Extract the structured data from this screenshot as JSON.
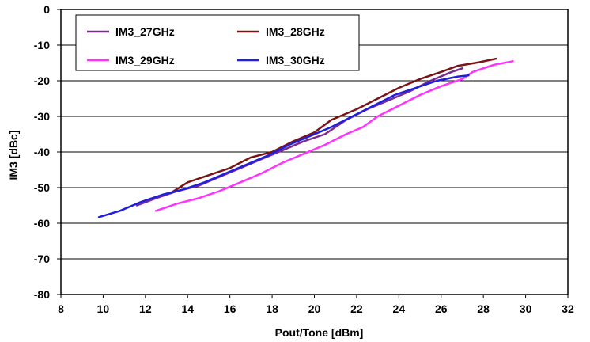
{
  "chart_data": {
    "type": "line",
    "title": "",
    "xlabel": "Pout/Tone [dBm]",
    "ylabel": "IM3 [dBc]",
    "xlim": [
      8,
      32
    ],
    "ylim": [
      -80,
      0
    ],
    "xticks": [
      8,
      10,
      12,
      14,
      16,
      18,
      20,
      22,
      24,
      26,
      28,
      30,
      32
    ],
    "yticks": [
      0,
      -10,
      -20,
      -30,
      -40,
      -50,
      -60,
      -70,
      -80
    ],
    "grid": "horizontal",
    "legend": "top-left",
    "series": [
      {
        "name": "IM3_27GHz",
        "color": "#7B2A8E",
        "points": [
          [
            11.6,
            -55.0
          ],
          [
            12.5,
            -53.0
          ],
          [
            13.5,
            -51.0
          ],
          [
            14.5,
            -49.5
          ],
          [
            15.5,
            -47.0
          ],
          [
            16.5,
            -44.5
          ],
          [
            17.5,
            -42.0
          ],
          [
            18.5,
            -39.5
          ],
          [
            19.5,
            -37.0
          ],
          [
            20.5,
            -35.0
          ],
          [
            21.5,
            -31.0
          ],
          [
            22.5,
            -28.0
          ],
          [
            23.5,
            -25.5
          ],
          [
            24.5,
            -23.0
          ],
          [
            25.5,
            -20.0
          ],
          [
            26.5,
            -17.5
          ],
          [
            27.0,
            -16.5
          ]
        ]
      },
      {
        "name": "IM3_28GHz",
        "color": "#7B1416",
        "points": [
          [
            13.2,
            -51.5
          ],
          [
            14.0,
            -48.5
          ],
          [
            15.0,
            -46.5
          ],
          [
            16.0,
            -44.5
          ],
          [
            17.0,
            -41.5
          ],
          [
            18.0,
            -40.0
          ],
          [
            19.0,
            -37.0
          ],
          [
            20.0,
            -34.5
          ],
          [
            20.8,
            -31.0
          ],
          [
            22.0,
            -28.0
          ],
          [
            23.0,
            -25.0
          ],
          [
            24.0,
            -22.0
          ],
          [
            25.0,
            -19.5
          ],
          [
            26.0,
            -17.5
          ],
          [
            26.8,
            -15.8
          ],
          [
            27.8,
            -14.8
          ],
          [
            28.6,
            -13.8
          ]
        ]
      },
      {
        "name": "IM3_29GHz",
        "color": "#FF33FF",
        "points": [
          [
            12.5,
            -56.5
          ],
          [
            13.5,
            -54.5
          ],
          [
            14.5,
            -53.0
          ],
          [
            15.5,
            -51.0
          ],
          [
            16.5,
            -48.5
          ],
          [
            17.5,
            -46.0
          ],
          [
            18.5,
            -43.0
          ],
          [
            19.5,
            -40.5
          ],
          [
            20.5,
            -38.0
          ],
          [
            21.5,
            -35.0
          ],
          [
            22.3,
            -33.0
          ],
          [
            23.0,
            -30.0
          ],
          [
            24.0,
            -27.0
          ],
          [
            25.0,
            -24.0
          ],
          [
            26.0,
            -21.5
          ],
          [
            27.0,
            -19.5
          ],
          [
            27.5,
            -17.5
          ],
          [
            28.5,
            -15.5
          ],
          [
            29.4,
            -14.5
          ]
        ]
      },
      {
        "name": "IM3_30GHz",
        "color": "#1F1FE0",
        "points": [
          [
            9.8,
            -58.3
          ],
          [
            10.8,
            -56.5
          ],
          [
            11.8,
            -54.0
          ],
          [
            12.8,
            -52.0
          ],
          [
            13.8,
            -50.5
          ],
          [
            14.8,
            -48.5
          ],
          [
            15.8,
            -46.0
          ],
          [
            16.8,
            -43.5
          ],
          [
            17.8,
            -41.0
          ],
          [
            18.8,
            -38.0
          ],
          [
            19.8,
            -35.5
          ],
          [
            20.8,
            -33.0
          ],
          [
            21.8,
            -30.0
          ],
          [
            22.8,
            -27.0
          ],
          [
            23.8,
            -24.0
          ],
          [
            24.8,
            -22.0
          ],
          [
            25.8,
            -20.0
          ],
          [
            26.8,
            -18.8
          ],
          [
            27.3,
            -18.5
          ]
        ]
      }
    ]
  }
}
